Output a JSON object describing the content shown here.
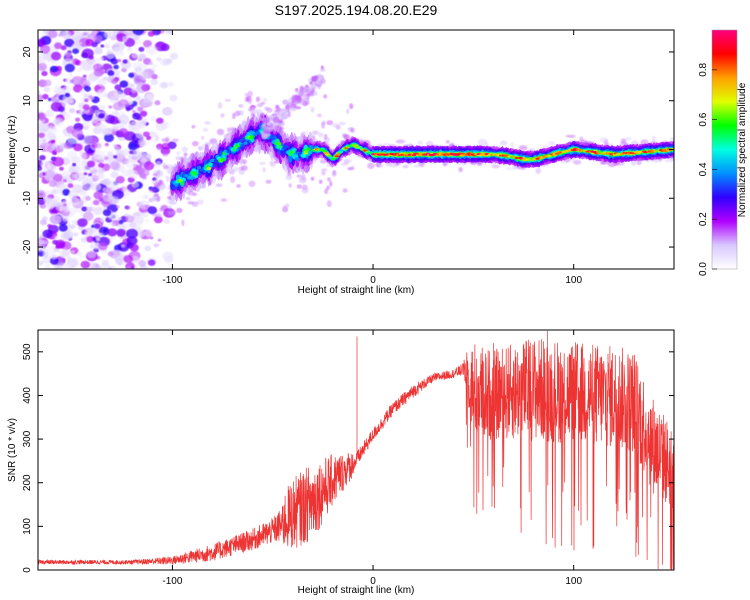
{
  "title": "S197.2025.194.08.20.E29",
  "chart_data": [
    {
      "type": "heatmap",
      "xlabel": "Height of straight line (km)",
      "ylabel": "Frequency (Hz)",
      "xlim": [
        -167,
        150
      ],
      "ylim": [
        -24.5,
        24.5
      ],
      "xticks": [
        -100,
        0,
        100
      ],
      "yticks": [
        -20,
        -10,
        0,
        10,
        20
      ],
      "ridge": {
        "x": [
          -100,
          -90,
          -80,
          -70,
          -60,
          -55,
          -50,
          -45,
          -40,
          -35,
          -30,
          -25,
          -20,
          -15,
          -10,
          -5,
          0,
          20,
          50,
          60,
          70,
          75,
          80,
          85,
          90,
          100,
          120,
          150
        ],
        "y": [
          -7,
          -5,
          -3,
          0,
          3,
          4,
          2,
          0,
          -1,
          -1,
          0,
          0,
          -2,
          0,
          1,
          0,
          -1,
          -1,
          -1,
          -1,
          -1.5,
          -2,
          -2,
          -1.5,
          -1,
          0,
          -1,
          0
        ]
      },
      "colorbar": {
        "label": "Normalized spectral amplitude",
        "ticks": [
          "0.0",
          "0.2",
          "0.4",
          "0.6",
          "0.8"
        ],
        "colors": [
          "#ffffff",
          "#d8c8ff",
          "#b000ff",
          "#3000ff",
          "#0090ff",
          "#00ffe0",
          "#00ff00",
          "#e0ff00",
          "#ffa000",
          "#ff0000",
          "#ff0080"
        ]
      }
    },
    {
      "type": "line",
      "xlabel": "Height of straight line (km)",
      "ylabel": "SNR (10 * v/v)",
      "xlim": [
        -167,
        150
      ],
      "ylim": [
        0,
        550
      ],
      "xticks": [
        -100,
        0,
        100
      ],
      "yticks": [
        0,
        100,
        200,
        300,
        400,
        500
      ],
      "color": "#ee3333",
      "envelope": {
        "x": [
          -167,
          -120,
          -100,
          -80,
          -60,
          -50,
          -40,
          -30,
          -20,
          -10,
          0,
          10,
          20,
          30,
          40,
          45,
          50,
          60,
          80,
          100,
          120,
          130,
          140,
          150
        ],
        "mean": [
          18,
          18,
          22,
          40,
          70,
          90,
          120,
          150,
          200,
          240,
          310,
          370,
          410,
          440,
          450,
          460,
          380,
          370,
          380,
          370,
          360,
          350,
          250,
          200
        ],
        "spread": [
          10,
          10,
          20,
          40,
          50,
          60,
          110,
          120,
          80,
          40,
          30,
          30,
          30,
          20,
          20,
          30,
          140,
          130,
          150,
          150,
          150,
          150,
          140,
          120
        ]
      },
      "spikes": [
        {
          "x": -8,
          "y": 535
        },
        {
          "x": 60,
          "y": 520
        },
        {
          "x": 87,
          "y": 548
        },
        {
          "x": 131,
          "y": 30
        }
      ]
    }
  ]
}
